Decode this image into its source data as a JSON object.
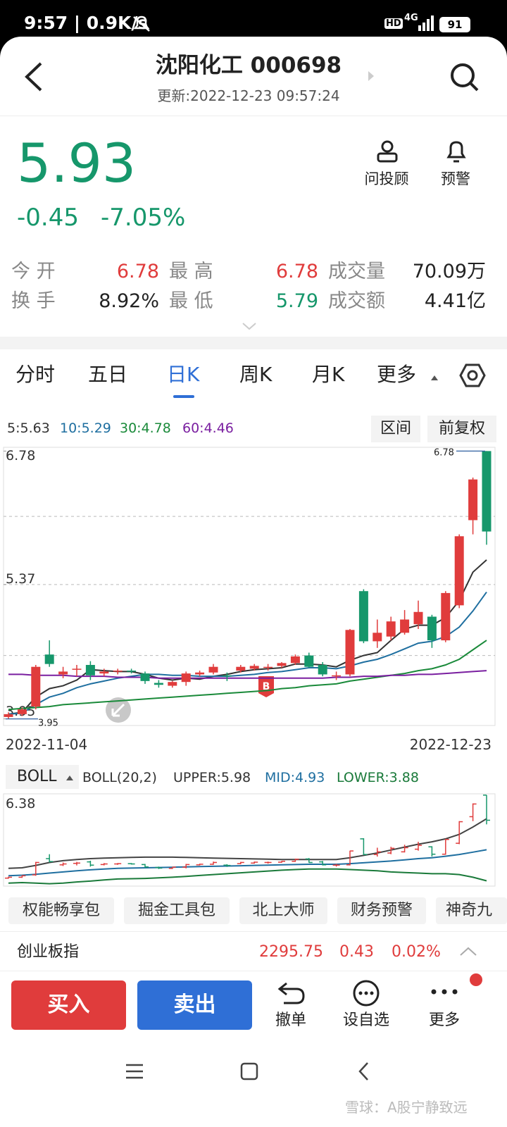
{
  "status_bar": {
    "time_speed": "9:57 | 0.9K/s",
    "hd": "HD",
    "network": "4G",
    "battery": "91"
  },
  "header": {
    "title": "沈阳化工 000698",
    "updated": "更新:2022-12-23 09:57:24"
  },
  "quote": {
    "price": "5.93",
    "change": "-0.45",
    "change_pct": "-7.05%"
  },
  "actions": [
    "问投顾",
    "预警"
  ],
  "stats": [
    [
      "今 开",
      "6.78",
      "最 高",
      "6.78",
      "成交量",
      "70.09万"
    ],
    [
      "换 手",
      "8.92%",
      "最 低",
      "5.79",
      "成交额",
      "4.41亿"
    ]
  ],
  "tabs": [
    "分时",
    "五日",
    "日K",
    "周K",
    "月K",
    "更多"
  ],
  "kline": {
    "ma_legend": [
      "5:5.63",
      "10:5.29",
      "30:4.78",
      "60:4.46"
    ],
    "buttons": [
      "区间",
      "前复权"
    ],
    "ylim": [
      3.88,
      6.82
    ],
    "yticks": [
      6.78,
      5.37,
      3.95
    ],
    "gridlines": [
      6.09,
      5.37,
      4.62
    ],
    "high_marker": 6.78,
    "low_marker": 3.95,
    "buy_marker": "B",
    "start_date": "2022-11-04",
    "end_date": "2022-12-23",
    "up_color": "#e03c3c",
    "down_color": "#16976b",
    "candles": [
      [
        3.97,
        4.02,
        3.95,
        4.0
      ],
      [
        4.0,
        4.07,
        3.98,
        4.05
      ],
      [
        4.08,
        4.52,
        4.05,
        4.5
      ],
      [
        4.63,
        4.78,
        4.5,
        4.53
      ],
      [
        4.42,
        4.5,
        4.38,
        4.45
      ],
      [
        4.47,
        4.52,
        4.4,
        4.48
      ],
      [
        4.52,
        4.56,
        4.36,
        4.41
      ],
      [
        4.43,
        4.48,
        4.4,
        4.45
      ],
      [
        4.45,
        4.48,
        4.42,
        4.46
      ],
      [
        4.46,
        4.48,
        4.43,
        4.45
      ],
      [
        4.43,
        4.45,
        4.32,
        4.35
      ],
      [
        4.33,
        4.36,
        4.28,
        4.31
      ],
      [
        4.3,
        4.35,
        4.28,
        4.34
      ],
      [
        4.34,
        4.45,
        4.3,
        4.43
      ],
      [
        4.42,
        4.46,
        4.4,
        4.44
      ],
      [
        4.44,
        4.53,
        4.42,
        4.5
      ],
      [
        4.41,
        4.44,
        4.35,
        4.4
      ],
      [
        4.46,
        4.52,
        4.44,
        4.5
      ],
      [
        4.48,
        4.53,
        4.46,
        4.51
      ],
      [
        4.5,
        4.53,
        4.46,
        4.5
      ],
      [
        4.51,
        4.55,
        4.49,
        4.54
      ],
      [
        4.54,
        4.63,
        4.52,
        4.61
      ],
      [
        4.62,
        4.65,
        4.49,
        4.5
      ],
      [
        4.52,
        4.55,
        4.4,
        4.42
      ],
      [
        4.41,
        4.45,
        4.36,
        4.41
      ],
      [
        4.42,
        4.9,
        4.4,
        4.89
      ],
      [
        5.3,
        5.32,
        4.75,
        4.77
      ],
      [
        4.77,
        5.0,
        4.7,
        4.86
      ],
      [
        4.82,
        5.03,
        4.78,
        4.98
      ],
      [
        4.86,
        5.1,
        4.84,
        5.0
      ],
      [
        4.95,
        5.2,
        4.9,
        5.08
      ],
      [
        5.03,
        5.05,
        4.7,
        4.78
      ],
      [
        4.78,
        5.3,
        4.76,
        5.28
      ],
      [
        5.15,
        5.9,
        5.12,
        5.88
      ],
      [
        6.05,
        6.5,
        5.9,
        6.48
      ],
      [
        6.78,
        6.78,
        5.79,
        5.93
      ]
    ],
    "ma": [
      {
        "color": "#333333",
        "values": [
          4.0,
          4.02,
          4.18,
          4.27,
          4.3,
          4.36,
          4.47,
          4.46,
          4.45,
          4.45,
          4.42,
          4.38,
          4.36,
          4.38,
          4.37,
          4.4,
          4.42,
          4.45,
          4.47,
          4.48,
          4.49,
          4.53,
          4.53,
          4.52,
          4.5,
          4.57,
          4.62,
          4.65,
          4.78,
          4.9,
          4.94,
          4.94,
          5.02,
          5.2,
          5.5,
          5.63
        ]
      },
      {
        "color": "#1f6fa0",
        "values": [
          4.0,
          4.01,
          4.1,
          4.18,
          4.22,
          4.28,
          4.32,
          4.35,
          4.38,
          4.4,
          4.42,
          4.42,
          4.41,
          4.41,
          4.4,
          4.4,
          4.4,
          4.41,
          4.42,
          4.44,
          4.45,
          4.47,
          4.49,
          4.49,
          4.48,
          4.51,
          4.55,
          4.58,
          4.63,
          4.69,
          4.75,
          4.77,
          4.82,
          4.92,
          5.09,
          5.29
        ]
      },
      {
        "color": "#1a8a3a",
        "values": [
          4.05,
          4.06,
          4.07,
          4.08,
          4.1,
          4.11,
          4.12,
          4.13,
          4.14,
          4.15,
          4.16,
          4.17,
          4.18,
          4.19,
          4.2,
          4.21,
          4.22,
          4.23,
          4.24,
          4.25,
          4.27,
          4.28,
          4.3,
          4.31,
          4.32,
          4.35,
          4.37,
          4.39,
          4.41,
          4.43,
          4.46,
          4.48,
          4.52,
          4.58,
          4.68,
          4.78
        ]
      },
      {
        "color": "#7a1fa0",
        "values": [
          4.42,
          4.42,
          4.41,
          4.41,
          4.41,
          4.4,
          4.4,
          4.4,
          4.39,
          4.39,
          4.39,
          4.38,
          4.38,
          4.38,
          4.38,
          4.38,
          4.38,
          4.38,
          4.38,
          4.38,
          4.38,
          4.38,
          4.38,
          4.38,
          4.39,
          4.39,
          4.4,
          4.4,
          4.41,
          4.41,
          4.42,
          4.42,
          4.43,
          4.44,
          4.45,
          4.46
        ]
      }
    ]
  },
  "boll": {
    "selector": "BOLL",
    "params": "BOLL(20,2)",
    "upper_label": "UPPER:5.98",
    "mid_label": "MID:4.93",
    "lower_label": "LOWER:3.88",
    "top_label": "6.38",
    "ylim": [
      3.7,
      6.8
    ],
    "upper": {
      "color": "#444444",
      "values": [
        4.3,
        4.32,
        4.4,
        4.5,
        4.56,
        4.6,
        4.63,
        4.65,
        4.66,
        4.67,
        4.68,
        4.68,
        4.68,
        4.67,
        4.66,
        4.65,
        4.64,
        4.63,
        4.62,
        4.61,
        4.6,
        4.6,
        4.6,
        4.6,
        4.6,
        4.66,
        4.74,
        4.82,
        4.92,
        5.02,
        5.12,
        5.2,
        5.3,
        5.45,
        5.7,
        5.98
      ]
    },
    "mid": {
      "color": "#1f6fa0",
      "values": [
        4.05,
        4.07,
        4.1,
        4.14,
        4.18,
        4.22,
        4.25,
        4.28,
        4.3,
        4.31,
        4.32,
        4.33,
        4.34,
        4.35,
        4.36,
        4.37,
        4.38,
        4.39,
        4.4,
        4.41,
        4.42,
        4.43,
        4.44,
        4.44,
        4.44,
        4.46,
        4.49,
        4.52,
        4.55,
        4.59,
        4.63,
        4.66,
        4.71,
        4.77,
        4.85,
        4.93
      ]
    },
    "lower": {
      "color": "#1a7a3a",
      "values": [
        3.8,
        3.82,
        3.8,
        3.78,
        3.8,
        3.84,
        3.87,
        3.91,
        3.94,
        3.95,
        3.96,
        3.98,
        4.0,
        4.03,
        4.06,
        4.09,
        4.12,
        4.15,
        4.18,
        4.21,
        4.24,
        4.26,
        4.28,
        4.28,
        4.28,
        4.26,
        4.24,
        4.22,
        4.18,
        4.16,
        4.14,
        4.12,
        4.12,
        4.09,
        4.0,
        3.88
      ]
    }
  },
  "tools": [
    "权能畅享包",
    "掘金工具包",
    "北上大师",
    "财务预警",
    "神奇九"
  ],
  "index_bar": {
    "name": "创业板指",
    "value": "2295.75",
    "change": "0.43",
    "pct": "0.02%"
  },
  "bottom": {
    "buy": "买入",
    "sell": "卖出",
    "items": [
      "撤单",
      "设自选",
      "更多"
    ]
  },
  "watermark": "雪球：A股宁静致远"
}
